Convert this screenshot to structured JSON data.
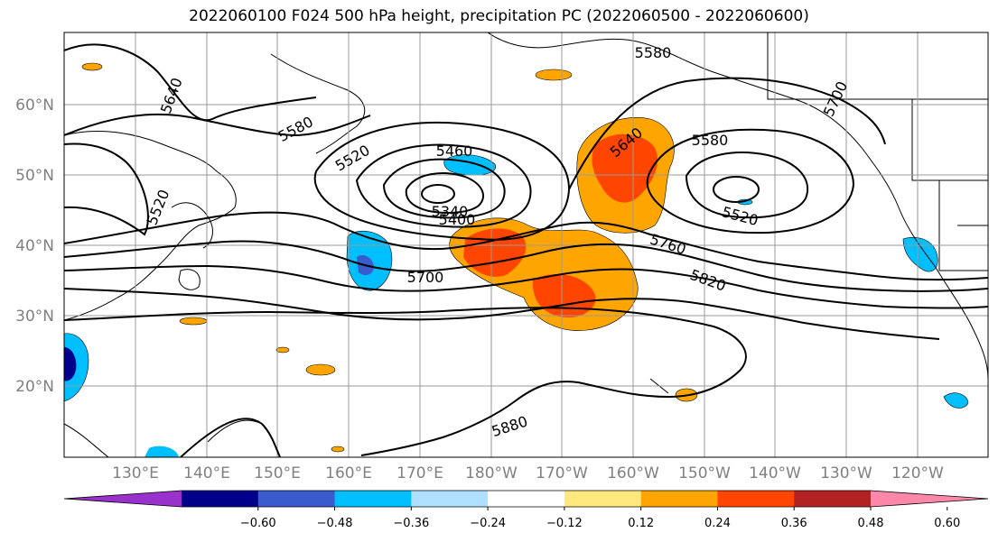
{
  "title": "2022060100 F024 500 hPa height, precipitation PC (2022060500 - 2022060600)",
  "lat_labels": [
    "60°N",
    "50°N",
    "40°N",
    "30°N",
    "20°N"
  ],
  "lon_labels": [
    "130°E",
    "140°E",
    "150°E",
    "160°E",
    "170°E",
    "180°W",
    "170°W",
    "160°W",
    "150°W",
    "140°W",
    "130°W",
    "120°W"
  ],
  "contour_labels": [
    "5580",
    "5640",
    "5580",
    "5520",
    "5460",
    "5400",
    "5340",
    "5700",
    "5760",
    "5820",
    "5880",
    "5640",
    "5580",
    "5520",
    "5700",
    "5520"
  ],
  "colorbar": {
    "ticks": [
      "−0.60",
      "−0.48",
      "−0.36",
      "−0.24",
      "−0.12",
      "0.12",
      "0.24",
      "0.36",
      "0.48",
      "0.60"
    ],
    "colors": [
      "#9932cc",
      "#00008b",
      "#3a5bcc",
      "#00bfff",
      "#b0e0ff",
      "#ffffff",
      "#ffe97f",
      "#ffa500",
      "#ff4500",
      "#b22222",
      "#ff88aa"
    ]
  }
}
